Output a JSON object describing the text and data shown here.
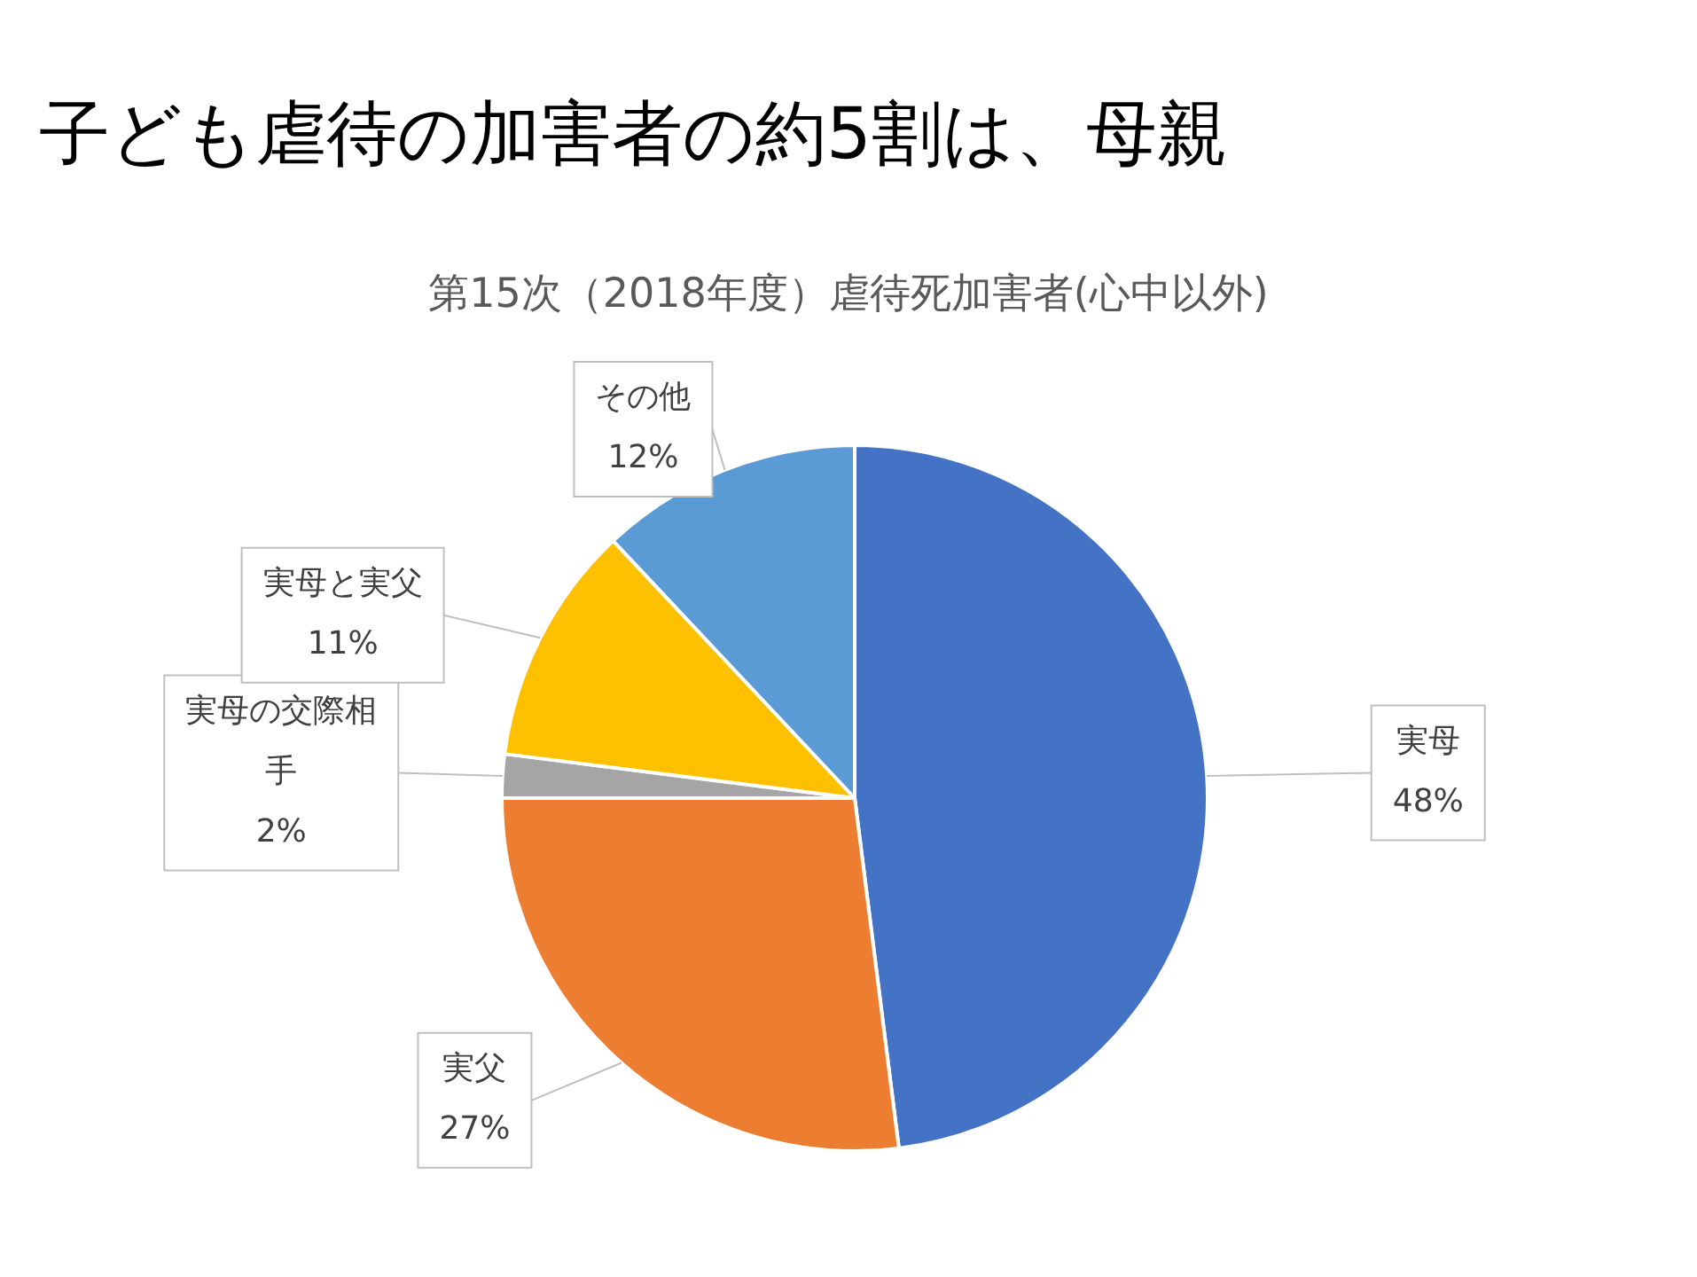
{
  "chart_data": {
    "type": "pie",
    "title": "子ども虐待の加害者の約5割は、母親",
    "subtitle": "第15次（2018年度）虐待死加害者(心中以外)",
    "categories": [
      "実母",
      "実父",
      "実母の交際相手",
      "実母と実父",
      "その他"
    ],
    "values": [
      48,
      27,
      2,
      11,
      12
    ],
    "colors": [
      "#4472c4",
      "#ed7d31",
      "#a5a5a5",
      "#ffc000",
      "#5b9bd5"
    ],
    "value_labels": [
      "48%",
      "27%",
      "2%",
      "11%",
      "12%"
    ],
    "legend": false
  }
}
